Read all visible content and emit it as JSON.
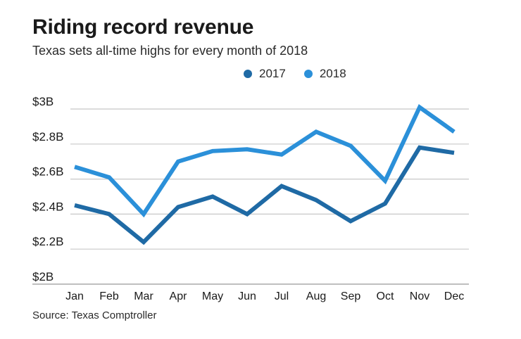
{
  "chart_data": {
    "type": "line",
    "title": "Riding record revenue",
    "subtitle": "Texas sets all-time highs for every month of 2018",
    "source": "Source: Texas Comptroller",
    "categories": [
      "Jan",
      "Feb",
      "Mar",
      "Apr",
      "May",
      "Jun",
      "Jul",
      "Aug",
      "Sep",
      "Oct",
      "Nov",
      "Dec"
    ],
    "series": [
      {
        "name": "2017",
        "color": "#1f6aa5",
        "values": [
          2.45,
          2.4,
          2.24,
          2.44,
          2.5,
          2.4,
          2.56,
          2.48,
          2.36,
          2.46,
          2.78,
          2.75
        ]
      },
      {
        "name": "2018",
        "color": "#2b90d9",
        "values": [
          2.67,
          2.61,
          2.4,
          2.7,
          2.76,
          2.77,
          2.74,
          2.87,
          2.79,
          2.59,
          3.01,
          2.87
        ]
      }
    ],
    "ylim": [
      2.0,
      3.0
    ],
    "ytick_values": [
      2.0,
      2.2,
      2.4,
      2.6,
      2.8,
      3.0
    ],
    "ytick_labels": [
      "$2B",
      "$2.2B",
      "$2.4B",
      "$2.6B",
      "$2.8B",
      "$3B"
    ],
    "xlabel": "",
    "ylabel": "",
    "grid": true,
    "legend_position": "top-center"
  }
}
